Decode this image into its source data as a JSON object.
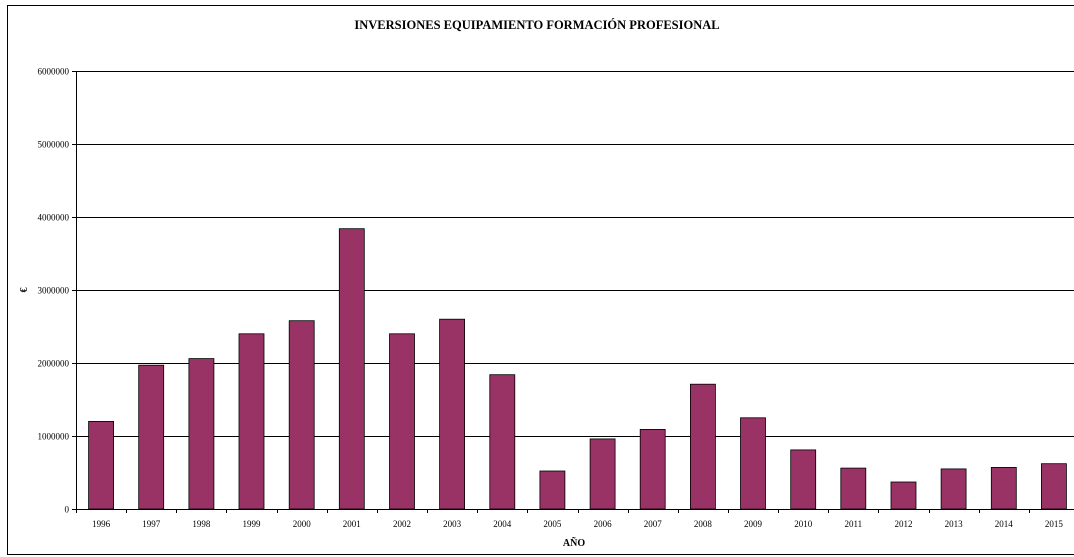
{
  "chart_data": {
    "type": "bar",
    "title": "INVERSIONES EQUIPAMIENTO FORMACIÓN PROFESIONAL",
    "xlabel": "AÑO",
    "ylabel": "€",
    "categories": [
      "1996",
      "1997",
      "1998",
      "1999",
      "2000",
      "2001",
      "2002",
      "2003",
      "2004",
      "2005",
      "2006",
      "2007",
      "2008",
      "2009",
      "2010",
      "2011",
      "2012",
      "2013",
      "2014",
      "2015"
    ],
    "values": [
      1200000,
      1970000,
      2060000,
      2400000,
      2580000,
      3840000,
      2400000,
      2600000,
      1840000,
      520000,
      960000,
      1090000,
      1710000,
      1250000,
      810000,
      560000,
      370000,
      550000,
      570000,
      620000
    ],
    "ylim": [
      0,
      6000000
    ],
    "yticks": [
      "0",
      "1000000",
      "2000000",
      "3000000",
      "4000000",
      "5000000",
      "6000000"
    ],
    "grid": true,
    "legend": "none",
    "bar_color": "#993366"
  }
}
